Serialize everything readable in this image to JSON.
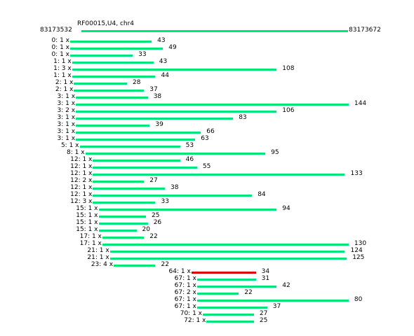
{
  "header": {
    "title": "RF00015,U4, chr4",
    "ref_start": "83173532",
    "ref_end": "83173672"
  },
  "colors": {
    "read": "#00e676",
    "highlight": "#dd0000",
    "background": "#ffffff"
  },
  "ref_range": [
    83173532,
    83173672
  ],
  "reads": [
    {
      "label": "0: 1 x",
      "offset": 0,
      "length": 43
    },
    {
      "label": "0: 1 x",
      "offset": 0,
      "length": 49
    },
    {
      "label": "0: 1 x",
      "offset": 0,
      "length": 33
    },
    {
      "label": "1: 1 x",
      "offset": 1,
      "length": 43
    },
    {
      "label": "1: 3 x",
      "offset": 1,
      "length": 108
    },
    {
      "label": "1: 1 x",
      "offset": 1,
      "length": 44
    },
    {
      "label": "2: 1 x",
      "offset": 2,
      "length": 28
    },
    {
      "label": "2: 1 x",
      "offset": 2,
      "length": 37
    },
    {
      "label": "3: 1 x",
      "offset": 3,
      "length": 38
    },
    {
      "label": "3: 1 x",
      "offset": 3,
      "length": 144
    },
    {
      "label": "3: 2 x",
      "offset": 3,
      "length": 106
    },
    {
      "label": "3: 1 x",
      "offset": 3,
      "length": 83
    },
    {
      "label": "3: 1 x",
      "offset": 3,
      "length": 39
    },
    {
      "label": "3: 1 x",
      "offset": 3,
      "length": 66
    },
    {
      "label": "3: 1 x",
      "offset": 3,
      "length": 63
    },
    {
      "label": "5: 1 x",
      "offset": 5,
      "length": 53
    },
    {
      "label": "8: 1 x",
      "offset": 8,
      "length": 95
    },
    {
      "label": "12: 1 x",
      "offset": 12,
      "length": 46
    },
    {
      "label": "12: 1 x",
      "offset": 12,
      "length": 55
    },
    {
      "label": "12: 1 x",
      "offset": 12,
      "length": 133
    },
    {
      "label": "12: 2 x",
      "offset": 12,
      "length": 27
    },
    {
      "label": "12: 1 x",
      "offset": 12,
      "length": 38
    },
    {
      "label": "12: 1 x",
      "offset": 12,
      "length": 84
    },
    {
      "label": "12: 3 x",
      "offset": 12,
      "length": 33
    },
    {
      "label": "15: 1 x",
      "offset": 15,
      "length": 94
    },
    {
      "label": "15: 1 x",
      "offset": 15,
      "length": 25
    },
    {
      "label": "15: 1 x",
      "offset": 15,
      "length": 26
    },
    {
      "label": "15: 1 x",
      "offset": 15,
      "length": 20
    },
    {
      "label": "17: 1 x",
      "offset": 17,
      "length": 22
    },
    {
      "label": "17: 1 x",
      "offset": 17,
      "length": 130
    },
    {
      "label": "21: 1 x",
      "offset": 21,
      "length": 124
    },
    {
      "label": "21: 1 x",
      "offset": 21,
      "length": 125
    },
    {
      "label": "23: 4 x",
      "offset": 23,
      "length": 22
    },
    {
      "label": "64: 1 x",
      "offset": 64,
      "length": 34,
      "highlight": true
    },
    {
      "label": "67: 1 x",
      "offset": 67,
      "length": 31
    },
    {
      "label": "67: 1 x",
      "offset": 67,
      "length": 42
    },
    {
      "label": "67: 2 x",
      "offset": 67,
      "length": 22
    },
    {
      "label": "67: 1 x",
      "offset": 67,
      "length": 80
    },
    {
      "label": "67: 1 x",
      "offset": 67,
      "length": 37
    },
    {
      "label": "70: 1 x",
      "offset": 70,
      "length": 27
    },
    {
      "label": "72: 1 x",
      "offset": 72,
      "length": 25
    }
  ]
}
